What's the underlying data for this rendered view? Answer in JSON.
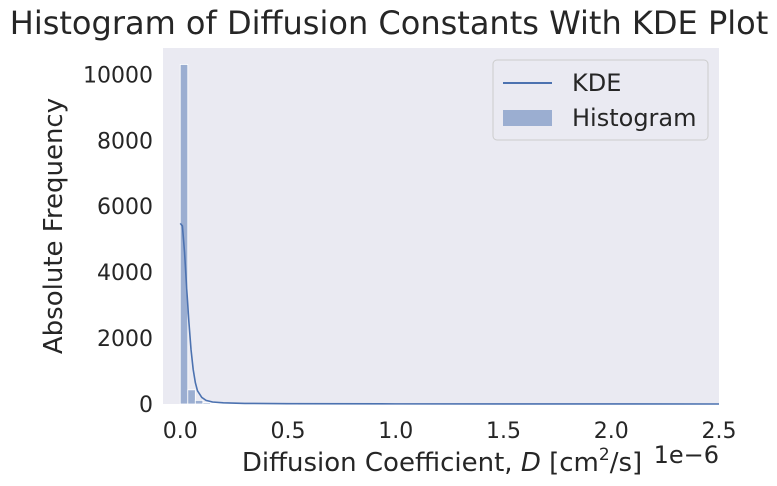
{
  "chart_data": {
    "type": "bar",
    "title": "Histogram of Diffusion Constants With KDE Plot",
    "xlabel_prefix": "Diffusion Coefficient, ",
    "xlabel_var": "D",
    "xlabel_unit_open": " [cm",
    "xlabel_unit_sup": "2",
    "xlabel_unit_close": "/s]",
    "x_offset_text": "1e−6",
    "ylabel": "Absolute Frequency",
    "xlim": [
      -0.08,
      2.5
    ],
    "ylim": [
      0,
      10800
    ],
    "x_ticks": [
      0.0,
      0.5,
      1.0,
      1.5,
      2.0,
      2.5
    ],
    "x_tick_labels": [
      "0.0",
      "0.5",
      "1.0",
      "1.5",
      "2.0",
      "2.5"
    ],
    "y_ticks": [
      0,
      2000,
      4000,
      6000,
      8000,
      10000
    ],
    "y_tick_labels": [
      "0",
      "2000",
      "4000",
      "6000",
      "8000",
      "10000"
    ],
    "grid": false,
    "legend_position": "top-right",
    "series": [
      {
        "name": "Histogram",
        "kind": "histogram",
        "color": "#4c72b0",
        "bin_width": 0.035,
        "bins": [
          {
            "x0": 0.0,
            "value": 10300
          },
          {
            "x0": 0.035,
            "value": 430
          },
          {
            "x0": 0.07,
            "value": 110
          },
          {
            "x0": 0.105,
            "value": 40
          },
          {
            "x0": 0.14,
            "value": 20
          },
          {
            "x0": 0.175,
            "value": 10
          },
          {
            "x0": 0.21,
            "value": 6
          },
          {
            "x0": 0.245,
            "value": 4
          },
          {
            "x0": 0.28,
            "value": 3
          },
          {
            "x0": 0.315,
            "value": 2
          },
          {
            "x0": 0.35,
            "value": 2
          },
          {
            "x0": 0.385,
            "value": 1
          }
        ]
      },
      {
        "name": "KDE",
        "kind": "line",
        "color": "#4c72b0",
        "x": [
          0.0,
          0.01,
          0.02,
          0.03,
          0.04,
          0.05,
          0.06,
          0.07,
          0.08,
          0.1,
          0.12,
          0.15,
          0.2,
          0.3,
          0.5,
          1.0,
          1.5,
          2.0,
          2.5
        ],
        "y": [
          5480,
          5400,
          4600,
          3500,
          2500,
          1650,
          1050,
          650,
          400,
          200,
          110,
          60,
          35,
          18,
          9,
          4,
          2,
          1,
          0
        ]
      }
    ]
  }
}
